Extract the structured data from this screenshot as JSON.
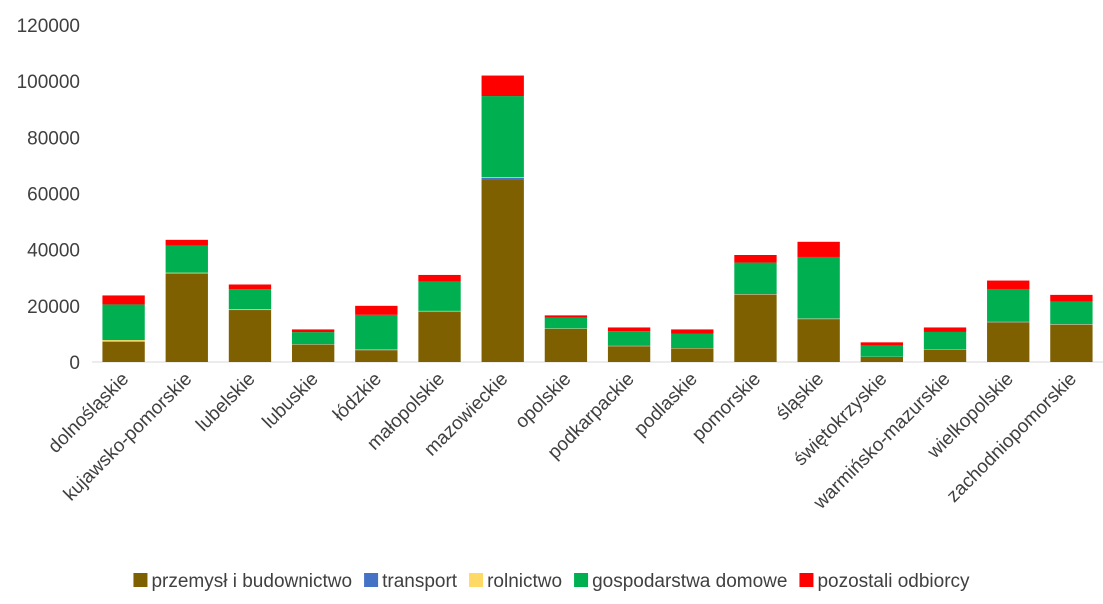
{
  "chart_data": {
    "type": "bar",
    "stacked": true,
    "title": "",
    "xlabel": "",
    "ylabel": "",
    "ylim": [
      0,
      120000
    ],
    "yticks": [
      0,
      20000,
      40000,
      60000,
      80000,
      100000,
      120000
    ],
    "ytick_labels": [
      "0",
      "20000",
      "40000",
      "60000",
      "80000",
      "100000",
      "120000"
    ],
    "grid": false,
    "legend_position": "bottom",
    "categories": [
      "dolnośląskie",
      "kujawsko-pomorskie",
      "lubelskie",
      "lubuskie",
      "łódzkie",
      "małopolskie",
      "mazowieckie",
      "opolskie",
      "podkarpackie",
      "podlaskie",
      "pomorskie",
      "śląskie",
      "świętokrzyskie",
      "warmińsko-mazurskie",
      "wielkopolskie",
      "zachodniopomorskie"
    ],
    "series": [
      {
        "name": "przemysł i budownictwo",
        "color": "#7F6000",
        "values": [
          7200,
          31500,
          18500,
          6200,
          4200,
          17800,
          64800,
          11800,
          5600,
          4800,
          24000,
          15200,
          1800,
          4300,
          14100,
          13300
        ]
      },
      {
        "name": "transport",
        "color": "#4472C4",
        "values": [
          100,
          100,
          100,
          50,
          50,
          200,
          800,
          50,
          50,
          50,
          100,
          200,
          30,
          50,
          100,
          100
        ]
      },
      {
        "name": "rolnictwo",
        "color": "#FFD966",
        "values": [
          500,
          200,
          200,
          100,
          200,
          200,
          200,
          100,
          100,
          100,
          100,
          100,
          50,
          100,
          100,
          100
        ]
      },
      {
        "name": "gospodarstwa domowe",
        "color": "#00B050",
        "values": [
          12700,
          9600,
          7100,
          4300,
          12350,
          10400,
          28900,
          3800,
          5250,
          5200,
          11200,
          21900,
          4020,
          6250,
          11700,
          8000
        ]
      },
      {
        "name": "pozostali odbiorcy",
        "color": "#FF0000",
        "values": [
          3200,
          2100,
          1700,
          950,
          3200,
          2400,
          7300,
          850,
          1300,
          1450,
          2700,
          5400,
          1100,
          1600,
          3000,
          2400
        ]
      }
    ]
  }
}
